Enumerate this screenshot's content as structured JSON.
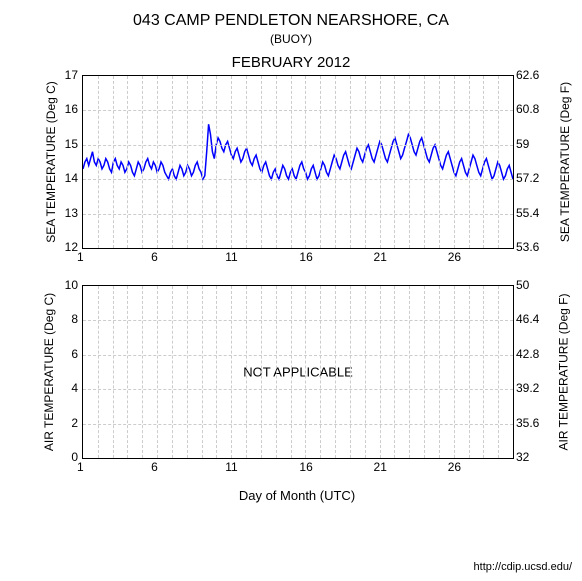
{
  "title": "043 CAMP PENDLETON NEARSHORE, CA",
  "subtitle": "(BUOY)",
  "date": "FEBRUARY 2012",
  "footer": "http://cdip.ucsd.edu/",
  "x_axis": {
    "label": "Day of Month (UTC)",
    "ticks": [
      1,
      6,
      11,
      16,
      21,
      26
    ],
    "min": 1,
    "max": 30,
    "grid_days": 29,
    "label_fontsize": 13,
    "tick_fontsize": 12
  },
  "sea_chart": {
    "left_label": "SEA TEMPERATURE (Deg C)",
    "right_label": "SEA TEMPERATURE (Deg F)",
    "left_ticks": [
      12,
      13,
      14,
      15,
      16,
      17
    ],
    "right_ticks": [
      53.6,
      55.4,
      57.2,
      59,
      60.8,
      62.6
    ],
    "ylim": [
      12,
      17
    ],
    "line_color": "#0000ff",
    "line_width": 1.5,
    "grid_color": "#cccccc",
    "data": [
      14.3,
      14.5,
      14.6,
      14.4,
      14.6,
      14.8,
      14.5,
      14.4,
      14.6,
      14.5,
      14.3,
      14.4,
      14.6,
      14.5,
      14.3,
      14.2,
      14.5,
      14.6,
      14.4,
      14.3,
      14.5,
      14.4,
      14.2,
      14.3,
      14.5,
      14.4,
      14.2,
      14.1,
      14.3,
      14.5,
      14.4,
      14.2,
      14.3,
      14.5,
      14.6,
      14.4,
      14.3,
      14.5,
      14.4,
      14.2,
      14.3,
      14.5,
      14.4,
      14.2,
      14.1,
      14.0,
      14.2,
      14.3,
      14.1,
      14.0,
      14.2,
      14.4,
      14.3,
      14.1,
      14.2,
      14.4,
      14.3,
      14.1,
      14.2,
      14.4,
      14.5,
      14.3,
      14.2,
      14.0,
      14.1,
      14.8,
      15.6,
      15.3,
      14.8,
      14.6,
      15.0,
      15.2,
      15.1,
      14.9,
      14.8,
      15.0,
      15.1,
      14.9,
      14.7,
      14.6,
      14.8,
      14.9,
      14.7,
      14.5,
      14.6,
      14.8,
      14.9,
      14.7,
      14.5,
      14.4,
      14.6,
      14.7,
      14.5,
      14.3,
      14.2,
      14.4,
      14.5,
      14.3,
      14.1,
      14.0,
      14.2,
      14.3,
      14.1,
      14.0,
      14.2,
      14.4,
      14.3,
      14.1,
      14.0,
      14.2,
      14.3,
      14.1,
      14.0,
      14.2,
      14.4,
      14.5,
      14.3,
      14.2,
      14.0,
      14.1,
      14.3,
      14.4,
      14.2,
      14.0,
      14.1,
      14.3,
      14.5,
      14.4,
      14.2,
      14.1,
      14.3,
      14.5,
      14.7,
      14.6,
      14.4,
      14.3,
      14.5,
      14.7,
      14.8,
      14.6,
      14.4,
      14.3,
      14.5,
      14.7,
      14.9,
      14.8,
      14.6,
      14.5,
      14.7,
      14.9,
      15.0,
      14.8,
      14.6,
      14.5,
      14.7,
      14.9,
      15.1,
      15.0,
      14.8,
      14.6,
      14.5,
      14.7,
      14.9,
      15.1,
      15.2,
      15.0,
      14.8,
      14.6,
      14.7,
      14.9,
      15.1,
      15.3,
      15.2,
      15.0,
      14.8,
      14.7,
      14.9,
      15.1,
      15.2,
      15.0,
      14.8,
      14.6,
      14.5,
      14.7,
      14.9,
      15.0,
      14.8,
      14.6,
      14.4,
      14.3,
      14.5,
      14.7,
      14.8,
      14.6,
      14.4,
      14.2,
      14.1,
      14.3,
      14.5,
      14.6,
      14.4,
      14.2,
      14.1,
      14.3,
      14.5,
      14.7,
      14.6,
      14.4,
      14.2,
      14.1,
      14.3,
      14.5,
      14.6,
      14.4,
      14.2,
      14.0,
      14.1,
      14.3,
      14.5,
      14.4,
      14.2,
      14.0,
      14.1,
      14.3,
      14.4,
      14.2,
      14.0
    ]
  },
  "air_chart": {
    "left_label": "AIR TEMPERATURE (Deg C)",
    "right_label": "AIR TEMPERATURE (Deg F)",
    "left_ticks": [
      0,
      2,
      4,
      6,
      8,
      10
    ],
    "right_ticks": [
      32,
      35.6,
      39.2,
      42.8,
      46.4,
      50
    ],
    "ylim": [
      0,
      10
    ],
    "na_text": "NOT APPLICABLE",
    "grid_color": "#cccccc"
  }
}
